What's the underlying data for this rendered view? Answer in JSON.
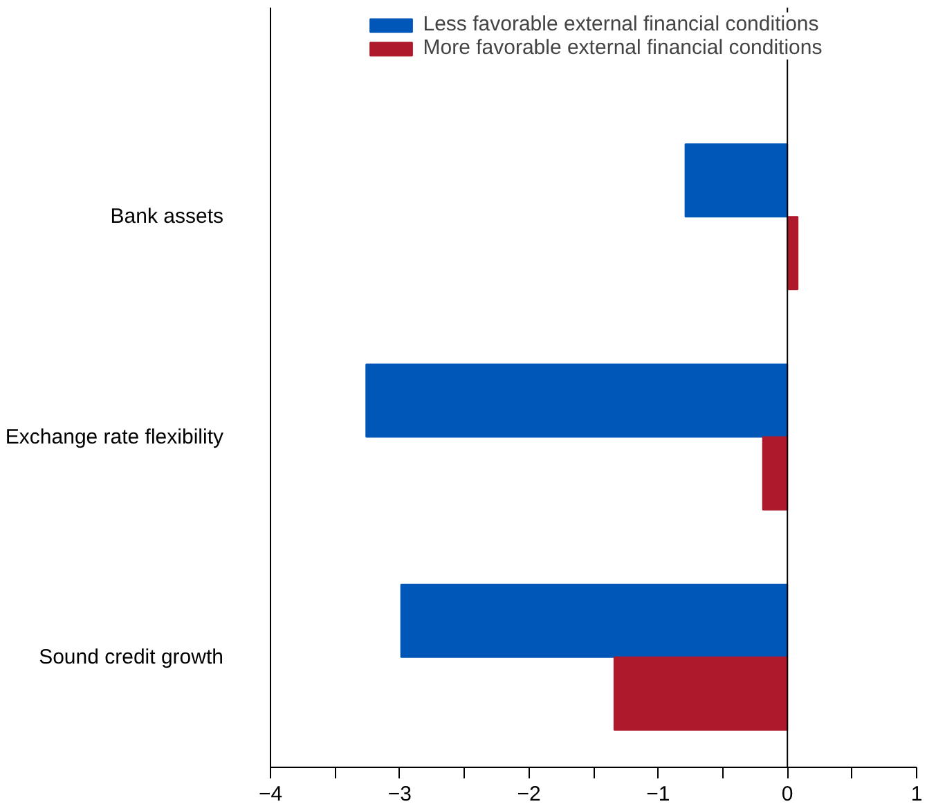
{
  "chart_data": {
    "type": "bar",
    "orientation": "horizontal",
    "categories": [
      "Bank assets",
      "Exchange rate flexibility",
      "Sound credit growth"
    ],
    "series": [
      {
        "name": "Less favorable external financial conditions",
        "color": "#0057b8",
        "values": [
          -0.79,
          -3.26,
          -2.99
        ]
      },
      {
        "name": "More favorable external financial conditions",
        "color": "#ae1a2c",
        "values": [
          0.08,
          -0.19,
          -1.34
        ]
      }
    ],
    "xlim": [
      -4,
      1
    ],
    "xticks": [
      -4,
      {
        "value": -3.5,
        "label": null
      },
      -3,
      {
        "value": -2.5,
        "label": null
      },
      -2,
      {
        "value": -1.5,
        "label": null
      },
      -1,
      {
        "value": -0.5,
        "label": null
      },
      0,
      {
        "value": 0.5,
        "label": null
      },
      1
    ],
    "ref_lines": [
      {
        "axis": "x",
        "value": 0,
        "label": null,
        "color": "#000000"
      }
    ],
    "legend": "top",
    "grid": false
  }
}
